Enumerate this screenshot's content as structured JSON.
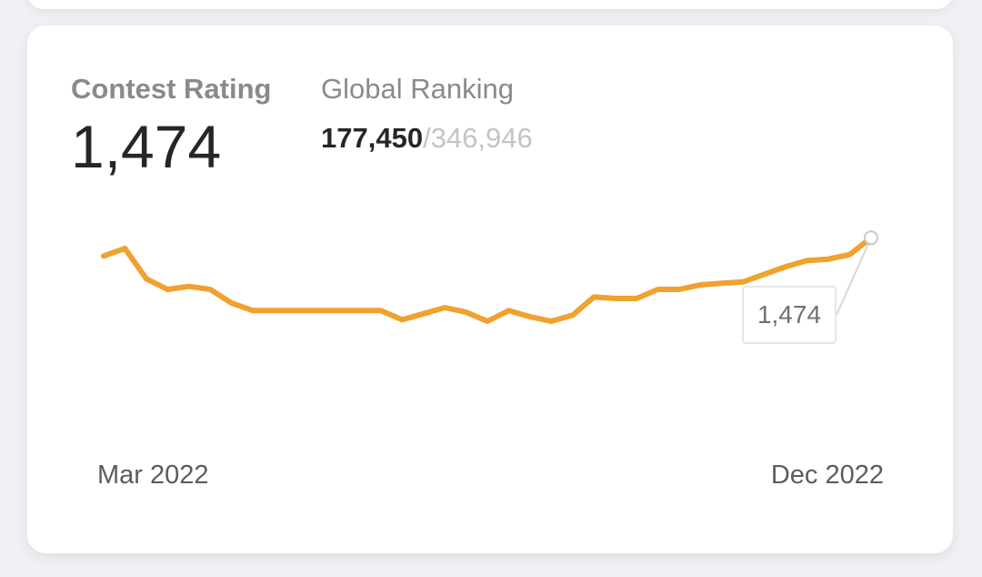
{
  "contest_rating": {
    "label": "Contest Rating",
    "value": "1,474"
  },
  "global_ranking": {
    "label": "Global Ranking",
    "current": "177,450",
    "separator": "/",
    "total": "346,946"
  },
  "tooltip": {
    "value": "1,474"
  },
  "colors": {
    "line": "#f0a12e",
    "accent_text": "#262626",
    "muted_text": "#8a8a8e"
  },
  "chart_data": {
    "type": "line",
    "x_start_label": "Mar 2022",
    "x_end_label": "Dec 2022",
    "ylim": [
      1350,
      1500
    ],
    "series": [
      {
        "values": [
          1462,
          1467,
          1447,
          1440,
          1442,
          1440,
          1431,
          1426,
          1426,
          1426,
          1426,
          1426,
          1426,
          1426,
          1420,
          1424,
          1428,
          1425,
          1419,
          1426,
          1422,
          1419,
          1423,
          1435,
          1434,
          1434,
          1440,
          1440,
          1443,
          1444,
          1445,
          1450,
          1455,
          1459,
          1460,
          1463,
          1474
        ]
      }
    ],
    "grid": false,
    "legend": "none",
    "highlight_last_point": true
  }
}
